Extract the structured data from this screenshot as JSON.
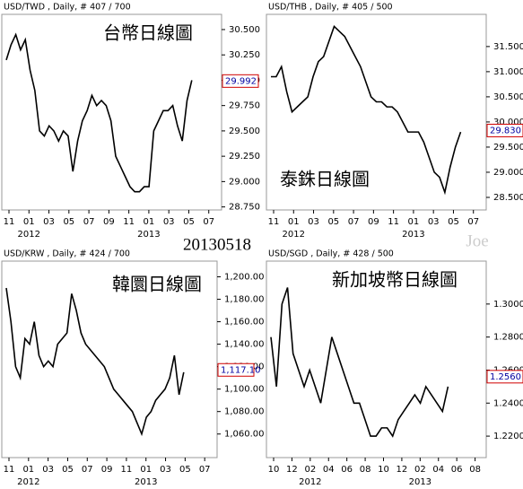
{
  "date_label": "20130518",
  "watermark": "Joe",
  "chart_data": [
    {
      "type": "line",
      "header": "USD/TWD , Daily, # 407 / 700",
      "title": "台幣日線圖",
      "x_labels": [
        "11",
        "01",
        "03",
        "05",
        "07",
        "09",
        "11",
        "01",
        "03",
        "05",
        "07"
      ],
      "years": [
        "2012",
        "2013"
      ],
      "series": [
        {
          "name": "USD/TWD",
          "color": "#000000",
          "values": [
            30.2,
            30.35,
            30.45,
            30.3,
            30.4,
            30.1,
            29.9,
            29.5,
            29.45,
            29.55,
            29.5,
            29.4,
            29.5,
            29.45,
            29.1,
            29.4,
            29.6,
            29.7,
            29.85,
            29.75,
            29.8,
            29.75,
            29.6,
            29.25,
            29.15,
            29.05,
            28.95,
            28.9,
            28.9,
            28.95,
            28.95,
            29.5,
            29.6,
            29.7,
            29.7,
            29.75,
            29.55,
            29.4,
            29.8,
            30.0
          ]
        }
      ],
      "last": 29.992,
      "ylim": [
        28.72,
        30.65
      ],
      "yticks": [
        {
          "value": 28.75,
          "label": "28.750"
        },
        {
          "value": 29,
          "label": "29.000"
        },
        {
          "value": 29.25,
          "label": "29.250"
        },
        {
          "value": 29.5,
          "label": "29.500"
        },
        {
          "value": 29.75,
          "label": "29.750"
        },
        {
          "value": 30,
          "label": "30.000"
        },
        {
          "value": 30.25,
          "label": "30.250"
        },
        {
          "value": 30.5,
          "label": "30.500"
        }
      ]
    },
    {
      "type": "line",
      "header": "USD/THB , Daily, # 405 / 500",
      "title": "泰銖日線圖",
      "x_labels": [
        "11",
        "01",
        "03",
        "05",
        "07",
        "09",
        "11",
        "01",
        "03",
        "05",
        "07"
      ],
      "years": [
        "2012",
        "2013"
      ],
      "series": [
        {
          "name": "USD/THB",
          "color": "#000000",
          "values": [
            30.9,
            30.9,
            31.1,
            30.6,
            30.2,
            30.3,
            30.4,
            30.5,
            30.9,
            31.2,
            31.3,
            31.6,
            31.9,
            31.8,
            31.7,
            31.5,
            31.3,
            31.1,
            30.8,
            30.5,
            30.4,
            30.4,
            30.3,
            30.3,
            30.2,
            30.0,
            29.8,
            29.8,
            29.8,
            29.6,
            29.3,
            29.0,
            28.9,
            28.6,
            29.1,
            29.5,
            29.8
          ]
        }
      ],
      "last": 29.83,
      "last_label": "29.830",
      "ylim": [
        28.25,
        32.14
      ],
      "yticks": [
        {
          "value": 28.5,
          "label": "28.500"
        },
        {
          "value": 29,
          "label": "29.000"
        },
        {
          "value": 29.5,
          "label": "29.500"
        },
        {
          "value": 30,
          "label": "30.000"
        },
        {
          "value": 30.5,
          "label": "30.500"
        },
        {
          "value": 31,
          "label": "31.000"
        },
        {
          "value": 31.5,
          "label": "31.500"
        }
      ]
    },
    {
      "type": "line",
      "header": "USD/KRW , Daily, # 424 / 700",
      "title": "韓圜日線圖",
      "x_labels": [
        "11",
        "01",
        "03",
        "05",
        "07",
        "09",
        "11",
        "01",
        "03",
        "05",
        "07"
      ],
      "years": [
        "2012",
        "2013"
      ],
      "series": [
        {
          "name": "USD/KRW",
          "color": "#000000",
          "values": [
            1190,
            1160,
            1120,
            1110,
            1145,
            1140,
            1160,
            1130,
            1120,
            1125,
            1120,
            1140,
            1145,
            1150,
            1185,
            1170,
            1150,
            1140,
            1135,
            1130,
            1125,
            1120,
            1110,
            1100,
            1095,
            1090,
            1085,
            1080,
            1070,
            1060,
            1075,
            1080,
            1090,
            1095,
            1100,
            1110,
            1130,
            1095,
            1115
          ]
        }
      ],
      "last": 1117.1,
      "last_label": "1,117.10",
      "ylim": [
        1039,
        1214
      ],
      "yticks": [
        {
          "value": 1060,
          "label": "1,060.00"
        },
        {
          "value": 1080,
          "label": "1,080.00"
        },
        {
          "value": 1100,
          "label": "1,100.00"
        },
        {
          "value": 1120,
          "label": "1,120.00"
        },
        {
          "value": 1140,
          "label": "1,140.00"
        },
        {
          "value": 1160,
          "label": "1,160.00"
        },
        {
          "value": 1180,
          "label": "1,180.00"
        },
        {
          "value": 1200,
          "label": "1,200.00"
        }
      ]
    },
    {
      "type": "line",
      "header": "USD/SGD , Daily, # 428 / 500",
      "title": "新加坡幣日線圖",
      "x_labels": [
        "10",
        "12",
        "02",
        "04",
        "06",
        "08",
        "10",
        "12",
        "02",
        "04",
        "06",
        "08"
      ],
      "years": [
        "2012",
        "2013"
      ],
      "series": [
        {
          "name": "USD/SGD",
          "color": "#000000",
          "values": [
            1.28,
            1.25,
            1.3,
            1.31,
            1.27,
            1.26,
            1.25,
            1.26,
            1.25,
            1.24,
            1.26,
            1.28,
            1.27,
            1.26,
            1.25,
            1.24,
            1.24,
            1.23,
            1.22,
            1.22,
            1.225,
            1.225,
            1.22,
            1.23,
            1.235,
            1.24,
            1.245,
            1.24,
            1.25,
            1.245,
            1.24,
            1.235,
            1.25
          ]
        }
      ],
      "last": 1.256,
      "last_label": "1.2560",
      "ylim": [
        1.207,
        1.326
      ],
      "yticks": [
        {
          "value": 1.22,
          "label": "1.2200"
        },
        {
          "value": 1.24,
          "label": "1.2400"
        },
        {
          "value": 1.26,
          "label": "1.2600"
        },
        {
          "value": 1.28,
          "label": "1.2800"
        },
        {
          "value": 1.3,
          "label": "1.3000"
        }
      ]
    }
  ]
}
